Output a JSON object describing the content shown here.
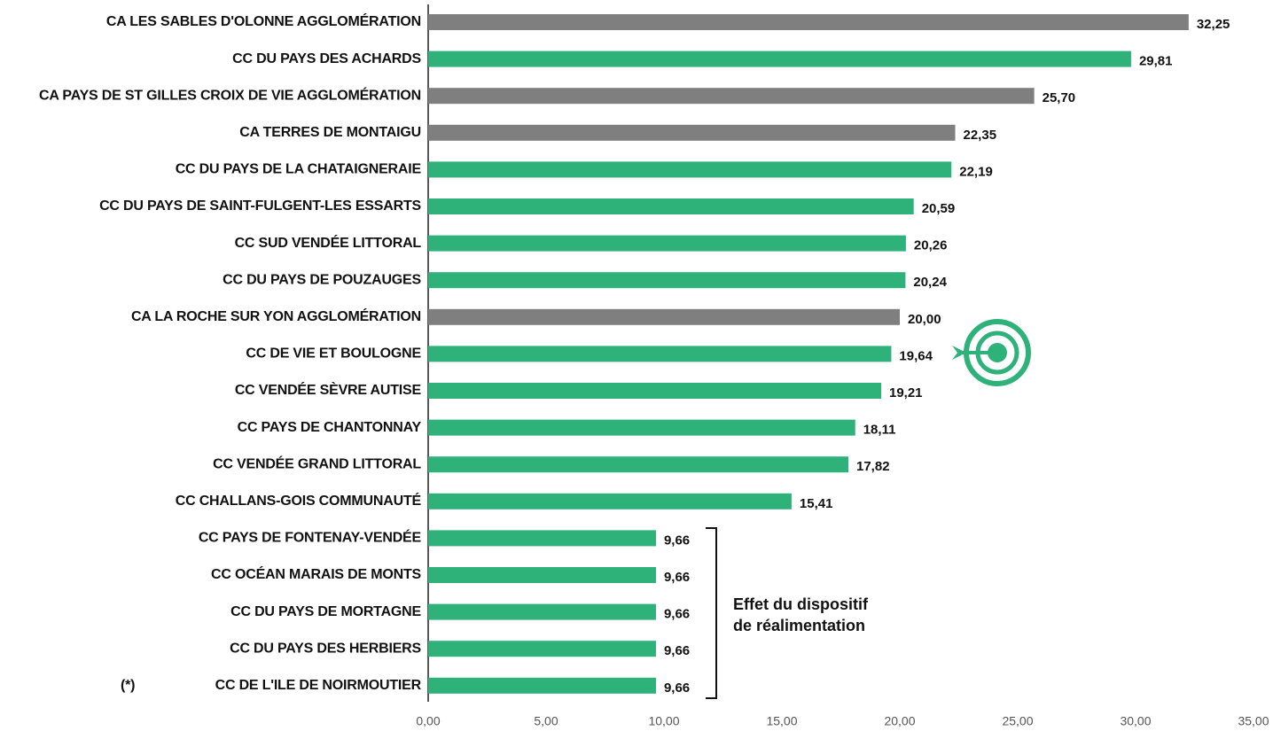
{
  "chart_data": {
    "type": "hbar",
    "categories": [
      "CA LES SABLES D'OLONNE AGGLOMÉRATION",
      "CC DU PAYS DES ACHARDS",
      "CA PAYS DE ST GILLES CROIX DE VIE AGGLOMÉRATION",
      "CA TERRES DE MONTAIGU",
      "CC DU PAYS DE LA CHATAIGNERAIE",
      "CC DU PAYS DE SAINT-FULGENT-LES ESSARTS",
      "CC SUD VENDÉE LITTORAL",
      "CC DU PAYS DE POUZAUGES",
      "CA LA ROCHE SUR YON AGGLOMÉRATION",
      "CC DE VIE ET BOULOGNE",
      "CC VENDÉE SÈVRE AUTISE",
      "CC PAYS DE CHANTONNAY",
      "CC VENDÉE GRAND LITTORAL",
      "CC CHALLANS-GOIS COMMUNAUTÉ",
      "CC PAYS DE FONTENAY-VENDÉE",
      "CC OCÉAN MARAIS DE MONTS",
      "CC DU PAYS DE MORTAGNE",
      "CC DU PAYS DES HERBIERS",
      "CC DE L'ILE DE NOIRMOUTIER"
    ],
    "values": [
      32.25,
      29.81,
      25.7,
      22.35,
      22.19,
      20.59,
      20.26,
      20.24,
      20.0,
      19.64,
      19.21,
      18.11,
      17.82,
      15.41,
      9.66,
      9.66,
      9.66,
      9.66,
      9.66
    ],
    "value_labels": [
      "32,25",
      "29,81",
      "25,70",
      "22,35",
      "22,19",
      "20,59",
      "20,26",
      "20,24",
      "20,00",
      "19,64",
      "19,21",
      "18,11",
      "17,82",
      "15,41",
      "9,66",
      "9,66",
      "9,66",
      "9,66",
      "9,66"
    ],
    "colors": [
      "#7f7f7f",
      "#2eb27a",
      "#7f7f7f",
      "#7f7f7f",
      "#2eb27a",
      "#2eb27a",
      "#2eb27a",
      "#2eb27a",
      "#7f7f7f",
      "#2eb27a",
      "#2eb27a",
      "#2eb27a",
      "#2eb27a",
      "#2eb27a",
      "#2eb27a",
      "#2eb27a",
      "#2eb27a",
      "#2eb27a",
      "#2eb27a"
    ],
    "xlim": [
      0,
      35
    ],
    "xticks": [
      {
        "value": 0,
        "label": "0,00"
      },
      {
        "value": 5,
        "label": "5,00"
      },
      {
        "value": 10,
        "label": "10,00"
      },
      {
        "value": 15,
        "label": "15,00"
      },
      {
        "value": 20,
        "label": "20,00"
      },
      {
        "value": 25,
        "label": "25,00"
      },
      {
        "value": 30,
        "label": "30,00"
      },
      {
        "value": 35,
        "label": "35,00"
      }
    ],
    "annotation": [
      "Effet du dispositif",
      "de réalimentation"
    ],
    "note": "(*)"
  }
}
